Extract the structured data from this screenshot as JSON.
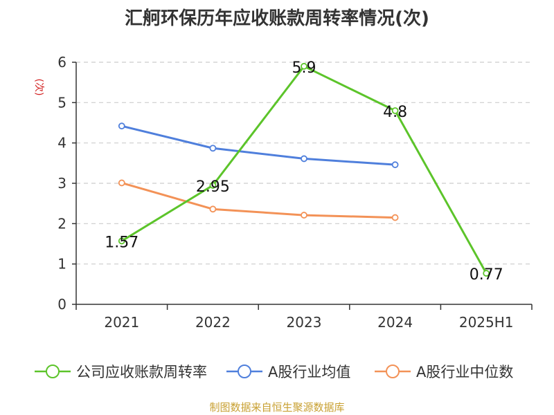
{
  "chart_data": {
    "type": "line",
    "title": "汇舸环保历年应收账款周转率情况(次)",
    "ylabel": "(次)",
    "xlabel": "",
    "categories": [
      "2021",
      "2022",
      "2023",
      "2024",
      "2025H1"
    ],
    "ylim": [
      0,
      6
    ],
    "yticks": [
      0,
      1,
      2,
      3,
      4,
      5,
      6
    ],
    "grid": true,
    "legend_position": "bottom",
    "series": [
      {
        "name": "公司应收账款周转率",
        "color": "#5cc42a",
        "values": [
          1.57,
          2.95,
          5.9,
          4.8,
          0.77
        ],
        "labels": [
          "1.57",
          "2.95",
          "5.9",
          "4.8",
          "0.77"
        ]
      },
      {
        "name": "A股行业均值",
        "color": "#4f7fdc",
        "values": [
          4.42,
          3.87,
          3.61,
          3.46,
          null
        ]
      },
      {
        "name": "A股行业中位数",
        "color": "#f39257",
        "values": [
          3.01,
          2.36,
          2.21,
          2.15,
          null
        ]
      }
    ]
  },
  "source_note": "制图数据来自恒生聚源数据库"
}
